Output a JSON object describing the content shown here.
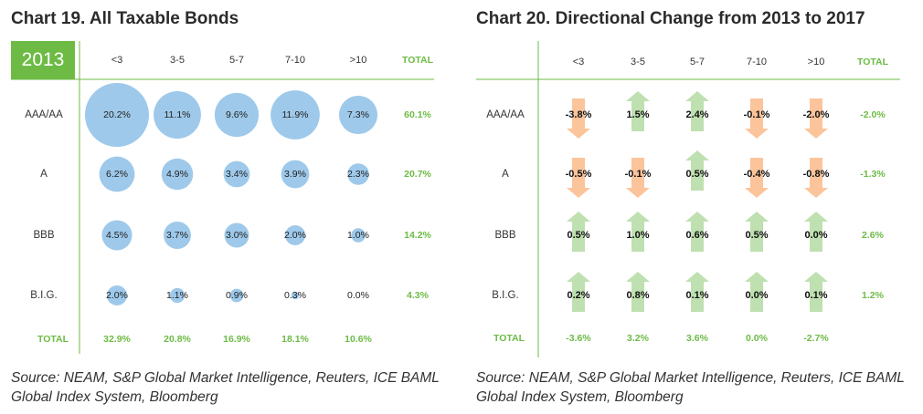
{
  "chart_data": [
    {
      "type": "bubble-table",
      "title": "Chart 19. All Taxable Bonds",
      "year": "2013",
      "columns": [
        "<3",
        "3-5",
        "5-7",
        "7-10",
        ">10"
      ],
      "total_label": "TOTAL",
      "rows": [
        {
          "label": "AAA/AA",
          "values": [
            "20.2%",
            "11.1%",
            "9.6%",
            "11.9%",
            "7.3%"
          ],
          "total": "60.1%"
        },
        {
          "label": "A",
          "values": [
            "6.2%",
            "4.9%",
            "3.4%",
            "3.9%",
            "2.3%"
          ],
          "total": "20.7%"
        },
        {
          "label": "BBB",
          "values": [
            "4.5%",
            "3.7%",
            "3.0%",
            "2.0%",
            "1.0%"
          ],
          "total": "14.2%"
        },
        {
          "label": "B.I.G.",
          "values": [
            "2.0%",
            "1.1%",
            "0.9%",
            "0.3%",
            "0.0%"
          ],
          "total": "4.3%"
        }
      ],
      "column_totals": [
        "32.9%",
        "20.8%",
        "16.9%",
        "18.1%",
        "10.6%"
      ],
      "source": "Source: NEAM, S&P Global Market Intelligence, Reuters, ICE BAML Global Index System, Bloomberg"
    },
    {
      "type": "arrow-table",
      "title": "Chart 20. Directional Change from 2013 to 2017",
      "columns": [
        "<3",
        "3-5",
        "5-7",
        "7-10",
        ">10"
      ],
      "total_label": "TOTAL",
      "rows": [
        {
          "label": "AAA/AA",
          "values": [
            "-3.8%",
            "1.5%",
            "2.4%",
            "-0.1%",
            "-2.0%"
          ],
          "total": "-2.0%"
        },
        {
          "label": "A",
          "values": [
            "-0.5%",
            "-0.1%",
            "0.5%",
            "-0.4%",
            "-0.8%"
          ],
          "total": "-1.3%"
        },
        {
          "label": "BBB",
          "values": [
            "0.5%",
            "1.0%",
            "0.6%",
            "0.5%",
            "0.0%"
          ],
          "total": "2.6%"
        },
        {
          "label": "B.I.G.",
          "values": [
            "0.2%",
            "0.8%",
            "0.1%",
            "0.0%",
            "0.1%"
          ],
          "total": "1.2%"
        }
      ],
      "column_totals": [
        "-3.6%",
        "3.2%",
        "3.6%",
        "0.0%",
        "-2.7%"
      ],
      "source": "Source: NEAM, S&P Global Market Intelligence, Reuters, ICE BAML Global Index System, Bloomberg"
    }
  ],
  "colors": {
    "accent_green": "#6dbb45",
    "bubble_blue": "#9ec9ea",
    "arrow_up": "#bfe0b0",
    "arrow_down": "#fcc49b"
  }
}
